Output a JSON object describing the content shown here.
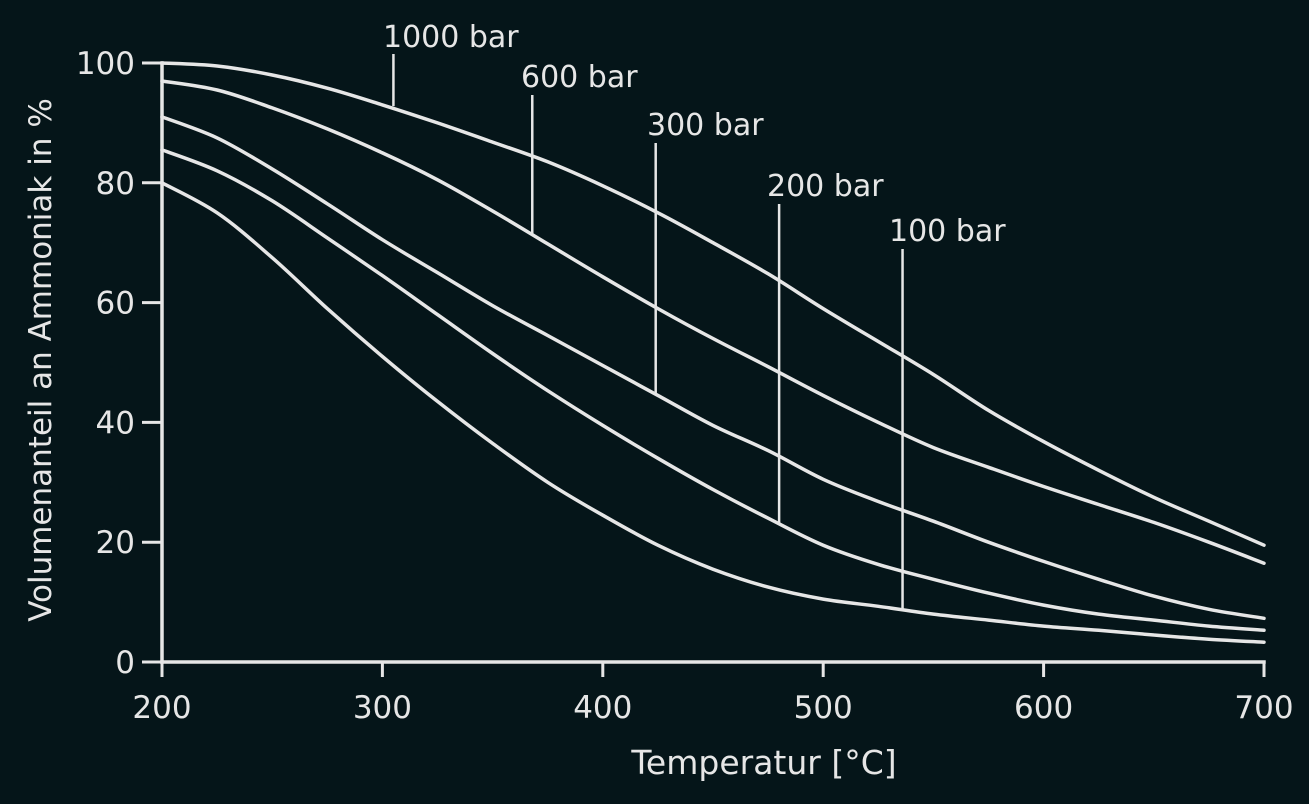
{
  "chart_data": {
    "type": "line",
    "title": "",
    "xlabel": "Temperatur [°C]",
    "ylabel": "Volumenanteil an Ammoniak in %",
    "xlim": [
      200,
      700
    ],
    "ylim": [
      0,
      100
    ],
    "x_ticks": [
      200,
      300,
      400,
      500,
      600,
      700
    ],
    "y_ticks": [
      0,
      20,
      40,
      60,
      80,
      100
    ],
    "grid": false,
    "legend": "none (series labelled directly on chart with leader lines)",
    "colors": {
      "background": "#051519",
      "foreground": "#e6e6e6"
    },
    "series": [
      {
        "name": "1000 bar",
        "points": [
          [
            200,
            100
          ],
          [
            225,
            99.5
          ],
          [
            250,
            98
          ],
          [
            275,
            95.8
          ],
          [
            300,
            93
          ],
          [
            325,
            90
          ],
          [
            350,
            86.8
          ],
          [
            375,
            83.5
          ],
          [
            400,
            79.5
          ],
          [
            425,
            75
          ],
          [
            450,
            70
          ],
          [
            475,
            64.8
          ],
          [
            500,
            59
          ],
          [
            525,
            53.5
          ],
          [
            550,
            48
          ],
          [
            575,
            42
          ],
          [
            600,
            36.8
          ],
          [
            625,
            32
          ],
          [
            650,
            27.5
          ],
          [
            675,
            23.5
          ],
          [
            700,
            19.5
          ]
        ],
        "label_anchor": [
          305,
          92.8
        ]
      },
      {
        "name": "600 bar",
        "points": [
          [
            200,
            97
          ],
          [
            225,
            95.5
          ],
          [
            250,
            92.5
          ],
          [
            275,
            89
          ],
          [
            300,
            85
          ],
          [
            325,
            80.5
          ],
          [
            350,
            75.3
          ],
          [
            375,
            69.8
          ],
          [
            400,
            64.3
          ],
          [
            425,
            59
          ],
          [
            450,
            54
          ],
          [
            475,
            49.3
          ],
          [
            500,
            44.5
          ],
          [
            525,
            40
          ],
          [
            550,
            35.8
          ],
          [
            575,
            32.5
          ],
          [
            600,
            29.3
          ],
          [
            625,
            26.3
          ],
          [
            650,
            23.3
          ],
          [
            675,
            20
          ],
          [
            700,
            16.5
          ]
        ],
        "label_anchor": [
          368,
          71.3
        ]
      },
      {
        "name": "300 bar",
        "points": [
          [
            200,
            91
          ],
          [
            225,
            87.5
          ],
          [
            250,
            82.3
          ],
          [
            275,
            76.5
          ],
          [
            300,
            70.5
          ],
          [
            325,
            65
          ],
          [
            350,
            59.5
          ],
          [
            375,
            54.5
          ],
          [
            400,
            49.5
          ],
          [
            425,
            44.5
          ],
          [
            450,
            39.5
          ],
          [
            475,
            35.3
          ],
          [
            500,
            30.5
          ],
          [
            525,
            26.8
          ],
          [
            550,
            23.5
          ],
          [
            575,
            20
          ],
          [
            600,
            16.8
          ],
          [
            625,
            13.8
          ],
          [
            650,
            11
          ],
          [
            675,
            8.8
          ],
          [
            700,
            7.3
          ]
        ],
        "label_anchor": [
          424,
          44.7
        ]
      },
      {
        "name": "200 bar",
        "points": [
          [
            200,
            85.5
          ],
          [
            225,
            82
          ],
          [
            250,
            77
          ],
          [
            275,
            70.8
          ],
          [
            300,
            64.5
          ],
          [
            325,
            58
          ],
          [
            350,
            51.5
          ],
          [
            375,
            45.3
          ],
          [
            400,
            39.5
          ],
          [
            425,
            34
          ],
          [
            450,
            28.8
          ],
          [
            475,
            24
          ],
          [
            500,
            19.5
          ],
          [
            525,
            16.3
          ],
          [
            550,
            13.8
          ],
          [
            575,
            11.5
          ],
          [
            600,
            9.5
          ],
          [
            625,
            8
          ],
          [
            650,
            7
          ],
          [
            675,
            6
          ],
          [
            700,
            5.3
          ]
        ],
        "label_anchor": [
          480,
          23
        ]
      },
      {
        "name": "100 bar",
        "points": [
          [
            200,
            80
          ],
          [
            225,
            75
          ],
          [
            250,
            67.5
          ],
          [
            275,
            59
          ],
          [
            300,
            51
          ],
          [
            325,
            43.5
          ],
          [
            350,
            36.5
          ],
          [
            375,
            30
          ],
          [
            400,
            24.5
          ],
          [
            425,
            19.5
          ],
          [
            450,
            15.5
          ],
          [
            475,
            12.5
          ],
          [
            500,
            10.5
          ],
          [
            525,
            9.3
          ],
          [
            550,
            8
          ],
          [
            575,
            7
          ],
          [
            600,
            6
          ],
          [
            625,
            5.3
          ],
          [
            650,
            4.5
          ],
          [
            675,
            3.8
          ],
          [
            700,
            3.3
          ]
        ],
        "label_anchor": [
          536,
          8.8
        ]
      }
    ]
  }
}
